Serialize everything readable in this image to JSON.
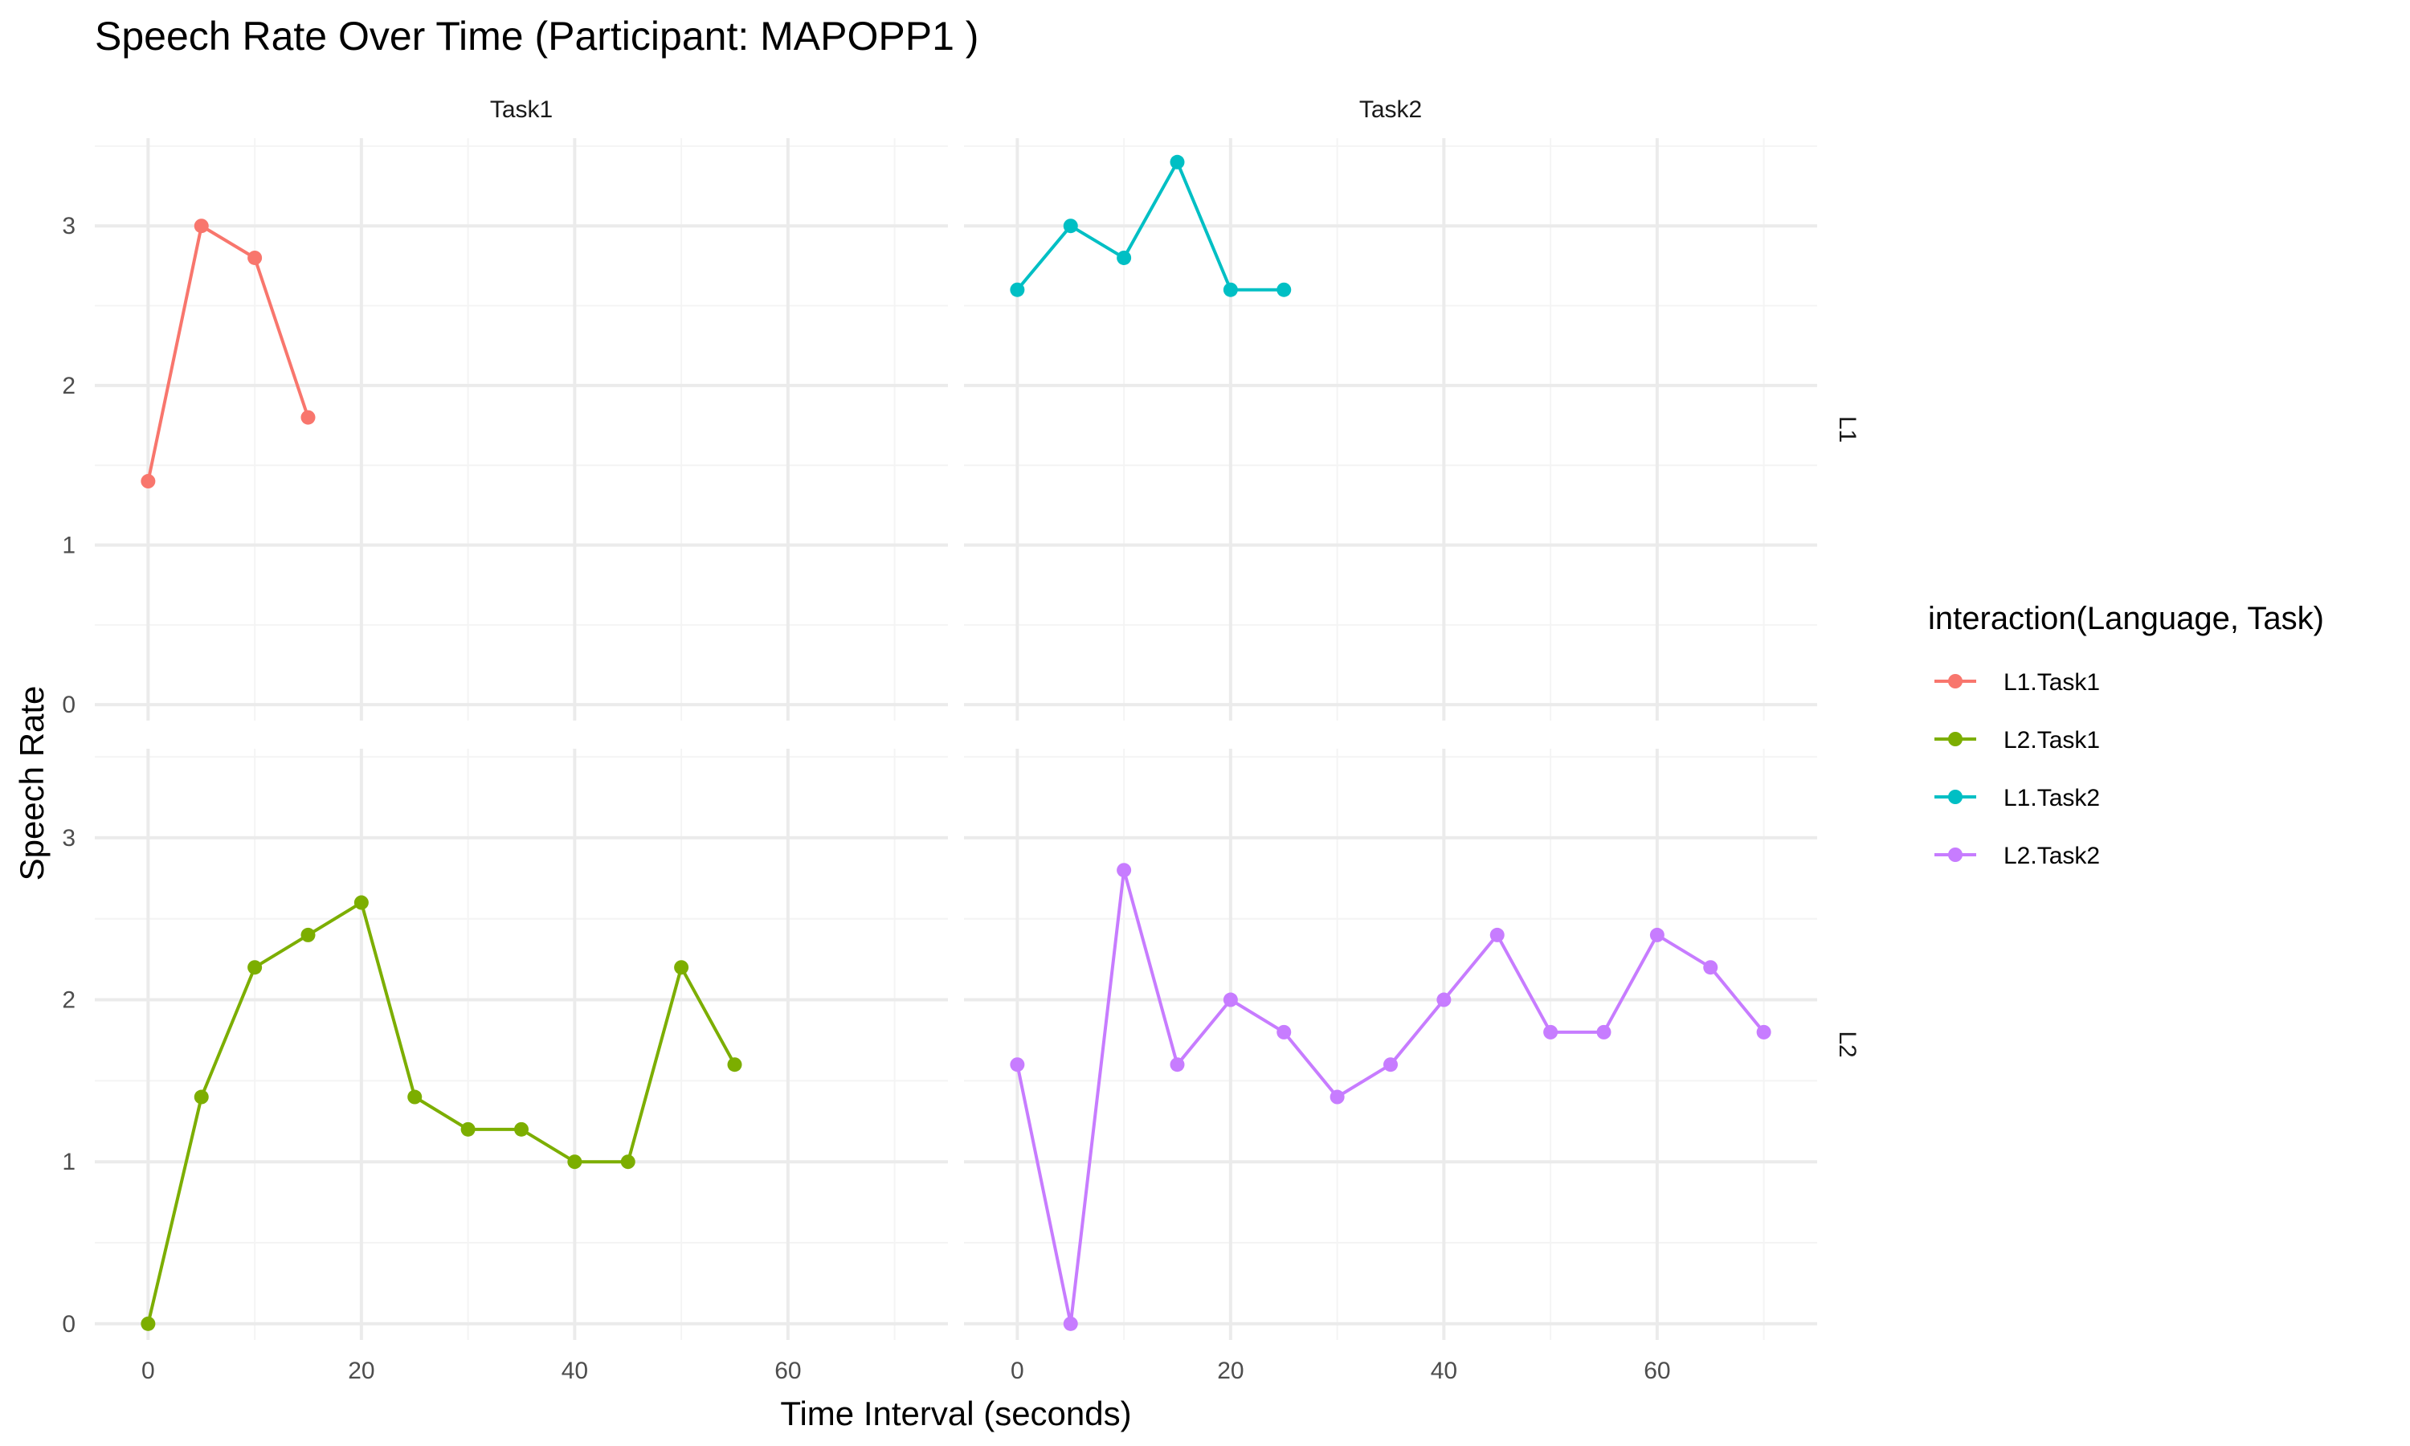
{
  "chart_data": {
    "type": "line",
    "title": "Speech Rate Over Time (Participant: MAPOPP1 )",
    "xlabel": "Time Interval (seconds)",
    "ylabel": "Speech Rate",
    "xlim": [
      -5,
      75
    ],
    "ylim": [
      -0.1,
      3.55
    ],
    "x_ticks": [
      0,
      20,
      40,
      60
    ],
    "y_ticks": [
      0,
      1,
      2,
      3
    ],
    "facet_columns": [
      "Task1",
      "Task2"
    ],
    "facet_rows": [
      "L1",
      "L2"
    ],
    "grid": true,
    "legend": {
      "title": "interaction(Language, Task)",
      "position": "right",
      "entries": [
        "L1.Task1",
        "L2.Task1",
        "L1.Task2",
        "L2.Task2"
      ]
    },
    "series": [
      {
        "name": "L1.Task1",
        "color": "#F8766D",
        "row": 0,
        "col": 0,
        "x": [
          0,
          5,
          10,
          15
        ],
        "y": [
          1.4,
          3.0,
          2.8,
          1.8
        ]
      },
      {
        "name": "L2.Task1",
        "color": "#7CAE00",
        "row": 1,
        "col": 0,
        "x": [
          0,
          5,
          10,
          15,
          20,
          25,
          30,
          35,
          40,
          45,
          50,
          55
        ],
        "y": [
          0.0,
          1.4,
          2.2,
          2.4,
          2.6,
          1.4,
          1.2,
          1.2,
          1.0,
          1.0,
          2.2,
          1.6
        ]
      },
      {
        "name": "L1.Task2",
        "color": "#00BFC4",
        "row": 0,
        "col": 1,
        "x": [
          0,
          5,
          10,
          15,
          20,
          25
        ],
        "y": [
          2.6,
          3.0,
          2.8,
          3.4,
          2.6,
          2.6
        ]
      },
      {
        "name": "L2.Task2",
        "color": "#C77CFF",
        "row": 1,
        "col": 1,
        "x": [
          0,
          5,
          10,
          15,
          20,
          25,
          30,
          35,
          40,
          45,
          50,
          55,
          60,
          65,
          70
        ],
        "y": [
          1.6,
          0.0,
          2.8,
          1.6,
          2.0,
          1.8,
          1.4,
          1.6,
          2.0,
          2.4,
          1.8,
          1.8,
          2.4,
          2.2,
          1.8
        ]
      }
    ]
  }
}
